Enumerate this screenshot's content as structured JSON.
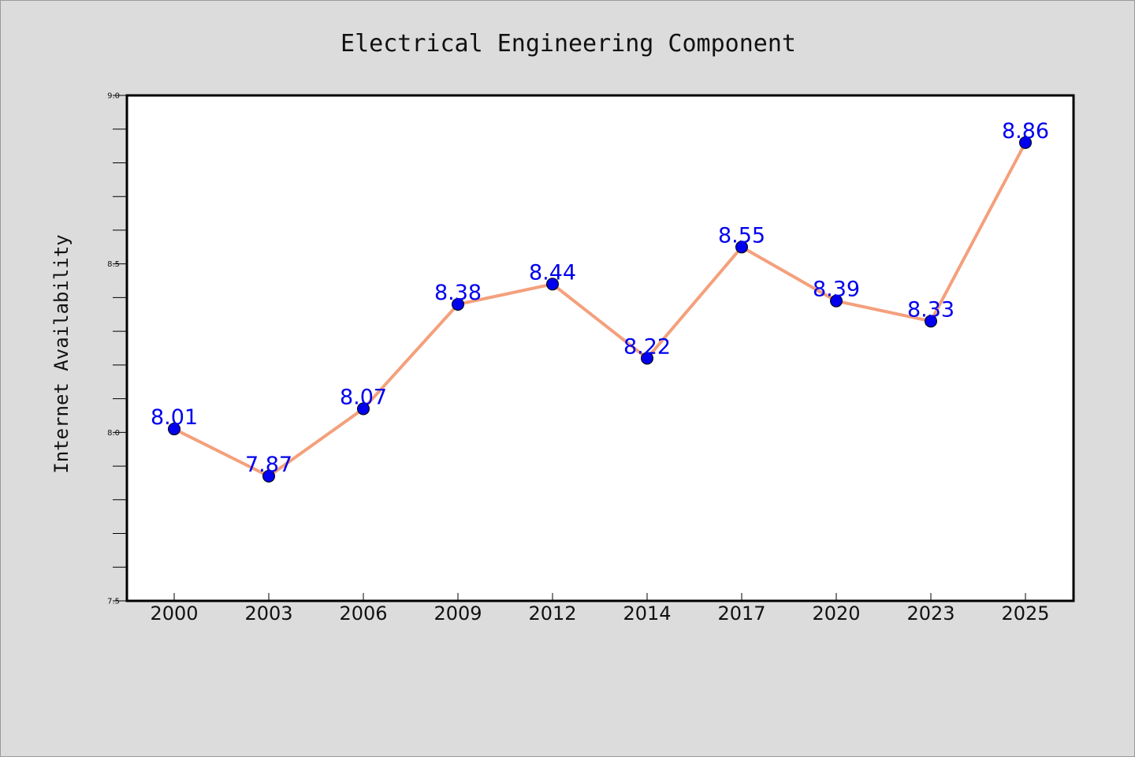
{
  "chart_data": {
    "type": "line",
    "title": "Electrical Engineering Component",
    "xlabel": "",
    "ylabel": "Internet Availability",
    "categories": [
      "2000",
      "2003",
      "2006",
      "2009",
      "2012",
      "2014",
      "2017",
      "2020",
      "2023",
      "2025"
    ],
    "series": [
      {
        "values": [
          8.01,
          7.87,
          8.07,
          8.38,
          8.44,
          8.22,
          8.55,
          8.39,
          8.33,
          8.86
        ],
        "labels": [
          "8.01",
          "7.87",
          "8.07",
          "8.38",
          "8.44",
          "8.22",
          "8.55",
          "8.39",
          "8.33",
          "8.86"
        ]
      }
    ],
    "ylim": [
      7.5,
      9.0
    ],
    "yticks": [
      "7.5",
      "8.0",
      "8.5",
      "9.0"
    ],
    "grid": false,
    "colors": {
      "line": "#f4a07c",
      "marker": "#0000ee",
      "marker_edge": "#000000",
      "label": "#0000ee",
      "plot_background": "#ffffff",
      "figure_background": "#dcdcdc"
    }
  }
}
